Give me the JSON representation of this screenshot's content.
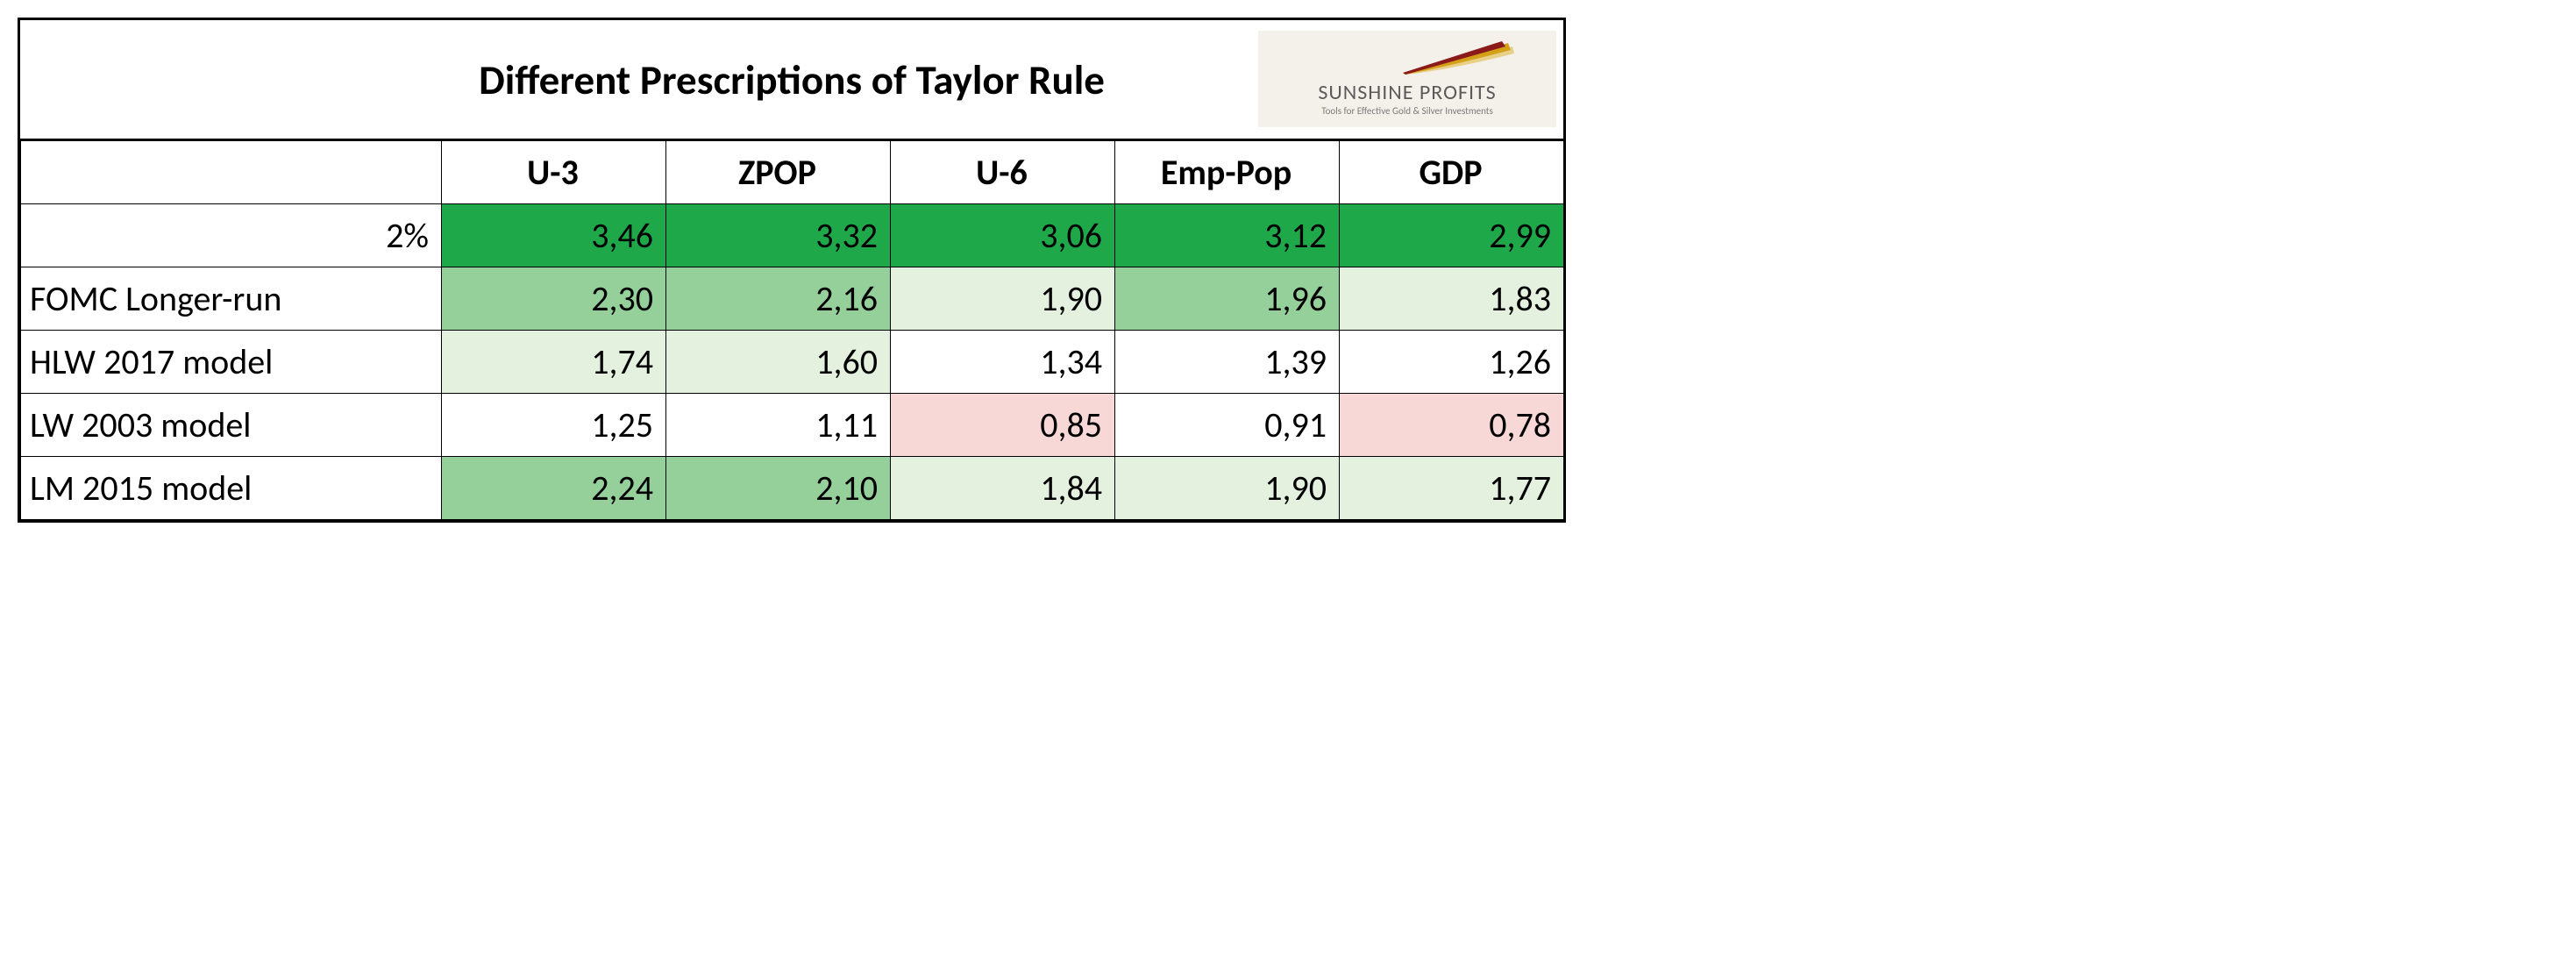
{
  "title": "Different Prescriptions of Taylor Rule",
  "logo": {
    "name": "SUNSHINE PROFITS",
    "tagline": "Tools for Effective Gold & Silver Investments",
    "swoosh_colors": [
      "#8b1a1a",
      "#d4a017",
      "#e8d088"
    ],
    "bg": "#f4f1ea"
  },
  "table": {
    "columns": [
      "U-3",
      "ZPOP",
      "U-6",
      "Emp-Pop",
      "GDP"
    ],
    "col_label_width": 480,
    "col_data_width": 256,
    "header_fontsize": 40,
    "cell_fontsize": 40,
    "border_color": "#000000",
    "rows": [
      {
        "label": "2%",
        "label_align": "right",
        "cells": [
          {
            "v": "3,46",
            "bg": "#1fa84a"
          },
          {
            "v": "3,32",
            "bg": "#1fa84a"
          },
          {
            "v": "3,06",
            "bg": "#1fa84a"
          },
          {
            "v": "3,12",
            "bg": "#1fa84a"
          },
          {
            "v": "2,99",
            "bg": "#1fa84a"
          }
        ]
      },
      {
        "label": "FOMC Longer-run",
        "label_align": "left",
        "cells": [
          {
            "v": "2,30",
            "bg": "#95d09a"
          },
          {
            "v": "2,16",
            "bg": "#95d09a"
          },
          {
            "v": "1,90",
            "bg": "#e4f1de"
          },
          {
            "v": "1,96",
            "bg": "#95d09a"
          },
          {
            "v": "1,83",
            "bg": "#e4f1de"
          }
        ]
      },
      {
        "label": "HLW 2017 model",
        "label_align": "left",
        "cells": [
          {
            "v": "1,74",
            "bg": "#e4f1de"
          },
          {
            "v": "1,60",
            "bg": "#e4f1de"
          },
          {
            "v": "1,34",
            "bg": "#ffffff"
          },
          {
            "v": "1,39",
            "bg": "#ffffff"
          },
          {
            "v": "1,26",
            "bg": "#ffffff"
          }
        ]
      },
      {
        "label": "LW 2003 model",
        "label_align": "left",
        "cells": [
          {
            "v": "1,25",
            "bg": "#ffffff"
          },
          {
            "v": "1,11",
            "bg": "#ffffff"
          },
          {
            "v": "0,85",
            "bg": "#f8d7d7"
          },
          {
            "v": "0,91",
            "bg": "#ffffff"
          },
          {
            "v": "0,78",
            "bg": "#f8d7d7"
          }
        ]
      },
      {
        "label": "LM 2015 model",
        "label_align": "left",
        "cells": [
          {
            "v": "2,24",
            "bg": "#95d09a"
          },
          {
            "v": "2,10",
            "bg": "#95d09a"
          },
          {
            "v": "1,84",
            "bg": "#e4f1de"
          },
          {
            "v": "1,90",
            "bg": "#e4f1de"
          },
          {
            "v": "1,77",
            "bg": "#e4f1de"
          }
        ]
      }
    ]
  }
}
